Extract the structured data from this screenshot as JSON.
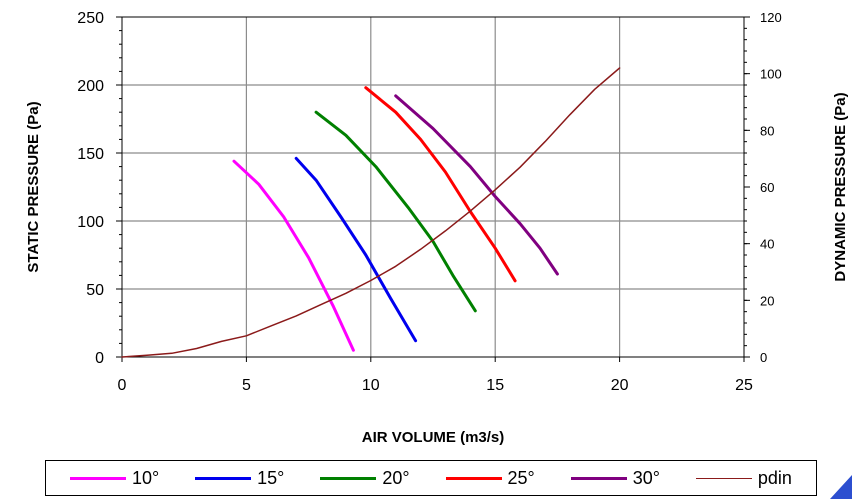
{
  "chart_data": {
    "type": "line",
    "xlabel": "AIR VOLUME (m3/s)",
    "ylabel": "STATIC PRESSURE (Pa)",
    "y2label": "DYNAMIC PRESSURE (Pa)",
    "xlim": [
      0,
      25
    ],
    "ylim": [
      0,
      250
    ],
    "y2lim": [
      0,
      120
    ],
    "x_ticks": [
      "0",
      "5",
      "10",
      "15",
      "20",
      "25"
    ],
    "y_ticks": [
      "0",
      "50",
      "100",
      "150",
      "200",
      "250"
    ],
    "y2_ticks": [
      "0",
      "20",
      "40",
      "60",
      "80",
      "100",
      "120"
    ],
    "grid": true,
    "legend_position": "bottom",
    "series": [
      {
        "name": "10°",
        "axis": "left",
        "color": "#ff00ff",
        "points": [
          [
            4.5,
            144
          ],
          [
            5.5,
            127
          ],
          [
            6.5,
            103
          ],
          [
            7.5,
            73
          ],
          [
            8.5,
            37
          ],
          [
            9.3,
            5
          ]
        ]
      },
      {
        "name": "15°",
        "axis": "left",
        "color": "#0000ee",
        "points": [
          [
            7.0,
            146
          ],
          [
            7.8,
            130
          ],
          [
            8.8,
            103
          ],
          [
            9.8,
            75
          ],
          [
            10.8,
            43
          ],
          [
            11.8,
            12
          ]
        ]
      },
      {
        "name": "20°",
        "axis": "left",
        "color": "#008000",
        "points": [
          [
            7.8,
            180
          ],
          [
            9.0,
            163
          ],
          [
            10.2,
            140
          ],
          [
            11.5,
            110
          ],
          [
            12.5,
            85
          ],
          [
            13.3,
            60
          ],
          [
            14.2,
            34
          ]
        ]
      },
      {
        "name": "25°",
        "axis": "left",
        "color": "#ff0000",
        "points": [
          [
            9.8,
            198
          ],
          [
            11.0,
            180
          ],
          [
            12.0,
            160
          ],
          [
            13.0,
            136
          ],
          [
            14.0,
            107
          ],
          [
            15.0,
            80
          ],
          [
            15.8,
            56
          ]
        ]
      },
      {
        "name": "30°",
        "axis": "left",
        "color": "#800080",
        "points": [
          [
            11.0,
            192
          ],
          [
            12.5,
            168
          ],
          [
            14.0,
            140
          ],
          [
            15.0,
            118
          ],
          [
            16.0,
            98
          ],
          [
            16.8,
            80
          ],
          [
            17.5,
            61
          ]
        ]
      },
      {
        "name": "pdin",
        "axis": "right",
        "color": "#8b1a1a",
        "points": [
          [
            0,
            0
          ],
          [
            1,
            0.6
          ],
          [
            2,
            1.3
          ],
          [
            3,
            3
          ],
          [
            4,
            5.5
          ],
          [
            5,
            7.5
          ],
          [
            6,
            11
          ],
          [
            7,
            14.5
          ],
          [
            8,
            18.5
          ],
          [
            9,
            22.5
          ],
          [
            10,
            27
          ],
          [
            11,
            32
          ],
          [
            12,
            38
          ],
          [
            13,
            44.5
          ],
          [
            14,
            51.5
          ],
          [
            15,
            59
          ],
          [
            16,
            67
          ],
          [
            17,
            76
          ],
          [
            18,
            85.5
          ],
          [
            19,
            94.5
          ],
          [
            20,
            102
          ]
        ]
      }
    ]
  },
  "legend": {
    "items": [
      {
        "label": "10°",
        "color": "#ff00ff",
        "thickness": 3
      },
      {
        "label": "15°",
        "color": "#0000ee",
        "thickness": 3
      },
      {
        "label": "20°",
        "color": "#008000",
        "thickness": 3
      },
      {
        "label": "25°",
        "color": "#ff0000",
        "thickness": 3
      },
      {
        "label": "30°",
        "color": "#800080",
        "thickness": 3
      },
      {
        "label": "pdin",
        "color": "#8b1a1a",
        "thickness": 1
      }
    ]
  }
}
